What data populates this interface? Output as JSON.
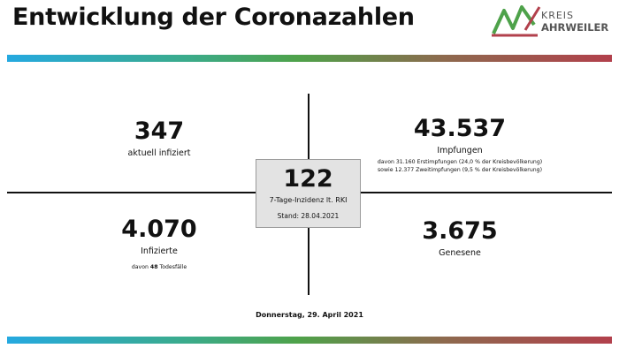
{
  "title": "Entwicklung der Coronazahlen",
  "logo": {
    "line1": "KREIS",
    "line2": "AHRWEILER",
    "colors": {
      "green": "#4ea24a",
      "red": "#b2404c"
    }
  },
  "gradient_colors": [
    "#25a9e0",
    "#3bab8a",
    "#4ea24a",
    "#8d6a4e",
    "#b2404c"
  ],
  "infected_now": {
    "value": "347",
    "label": "aktuell infiziert"
  },
  "vaccinations": {
    "value": "43.537",
    "label": "Impfungen",
    "note1": "davon 31.160 Erstimpfungen (24,0 % der Kreisbevölkerung)",
    "note2": "sowie 12.377 Zweitimpfungen (9,5 % der Kreisbevölkerung)"
  },
  "incidence": {
    "value": "122",
    "label": "7-Tage-Inzidenz lt. RKI",
    "stand": "Stand: 28.04.2021"
  },
  "infected_total": {
    "value": "4.070",
    "label": "Infizierte",
    "deaths_prefix": "davon ",
    "deaths_value": "48",
    "deaths_suffix": " Todesfälle"
  },
  "recovered": {
    "value": "3.675",
    "label": "Genesene"
  },
  "date": "Donnerstag, 29. April 2021"
}
